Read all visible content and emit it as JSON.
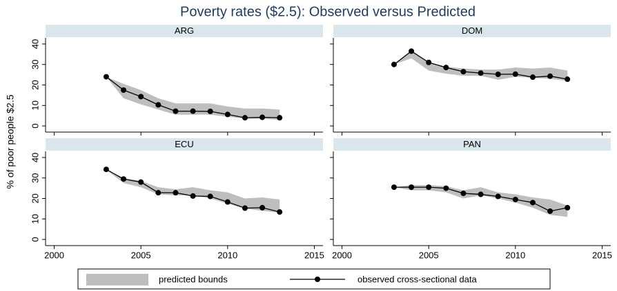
{
  "chart_data": {
    "type": "line",
    "title": "Poverty rates ($2.5): Observed versus Predicted",
    "ylabel": "% of poor people $2.5",
    "x": [
      2003,
      2004,
      2005,
      2006,
      2007,
      2008,
      2009,
      2010,
      2011,
      2012,
      2013
    ],
    "xlim": [
      1999.5,
      2015.5
    ],
    "xticks": [
      2000,
      2005,
      2010,
      2015
    ],
    "ylim": [
      -3,
      43
    ],
    "yticks": [
      0,
      10,
      20,
      30,
      40
    ],
    "series": [
      {
        "name": "predicted bounds",
        "color": "#bebebe"
      },
      {
        "name": "observed cross-sectional data",
        "color": "#000000"
      }
    ],
    "panels": [
      {
        "title": "ARG",
        "values": [
          24,
          17.5,
          14.3,
          10.3,
          7.2,
          7.2,
          7.1,
          5.6,
          4,
          4.2,
          4
        ],
        "lower": [
          24,
          13.5,
          10.5,
          8,
          5.5,
          5.5,
          5.5,
          4.5,
          3.5,
          3.5,
          3
        ],
        "upper": [
          24,
          20.5,
          17.5,
          13.5,
          11,
          11,
          11,
          9.5,
          8.5,
          8.5,
          8
        ]
      },
      {
        "title": "DOM",
        "values": [
          30,
          36.5,
          31,
          28.5,
          26.5,
          25.8,
          25.2,
          25.3,
          23.8,
          24.3,
          22.8
        ],
        "lower": [
          30,
          33,
          27,
          25.5,
          24.5,
          24.5,
          22.5,
          24,
          23.5,
          23,
          22
        ],
        "upper": [
          30,
          36.5,
          31,
          29,
          28,
          27.5,
          27.5,
          28.5,
          28,
          28.5,
          27
        ]
      },
      {
        "title": "ECU",
        "values": [
          34.2,
          29.5,
          28,
          22.8,
          22.8,
          21.2,
          21,
          18.3,
          15.3,
          15.5,
          13.4
        ],
        "lower": [
          34,
          27.5,
          25.5,
          22,
          21.5,
          21.5,
          20,
          17.5,
          15,
          14,
          13
        ],
        "upper": [
          34,
          30,
          28.5,
          25.5,
          24.5,
          25.5,
          24,
          23,
          20,
          20.5,
          19.5
        ]
      },
      {
        "title": "PAN",
        "values": [
          25.5,
          25.5,
          25.5,
          25,
          22.5,
          22,
          21,
          19.5,
          18,
          13.8,
          15.5
        ],
        "lower": [
          25.5,
          24,
          24,
          23,
          20,
          21.5,
          20,
          18,
          15.5,
          12,
          11
        ],
        "upper": [
          25.5,
          26.5,
          26.5,
          26,
          24,
          25.5,
          23,
          22,
          20.5,
          19.5,
          16.5
        ]
      }
    ]
  }
}
